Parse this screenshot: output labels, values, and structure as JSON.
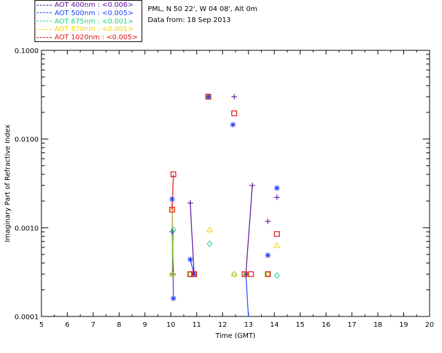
{
  "legend": [
    {
      "label": "AOT  400nm : <0.006>",
      "color": "#5a0a9a"
    },
    {
      "label": "AOT  500nm : <0.005>",
      "color": "#1e3cff"
    },
    {
      "label": "AOT  675nm : <0.001>",
      "color": "#22d07a"
    },
    {
      "label": "AOT  870nm : <0.001>",
      "color": "#f2d200"
    },
    {
      "label": "AOT 1020nm : <0.005>",
      "color": "#e01010"
    }
  ],
  "info": {
    "location": "PML, N 50 22', W 04 08', Alt 0m",
    "date": "Data from: 18 Sep 2013"
  },
  "chart_data": {
    "type": "scatter",
    "title": "",
    "xlabel": "Time (GMT)",
    "ylabel": "Imaginary Part of Refractive Index",
    "xlim": [
      5,
      20
    ],
    "ylim": [
      0.0001,
      0.1
    ],
    "yscale": "log",
    "xticks": [
      "5",
      "6",
      "7",
      "8",
      "9",
      "10",
      "11",
      "12",
      "13",
      "14",
      "15",
      "16",
      "17",
      "18",
      "19",
      "20"
    ],
    "yticks": [
      "0.0001",
      "0.0010",
      "0.0100",
      "0.1000"
    ],
    "series": [
      {
        "name": "AOT 400nm",
        "color": "#5a0a9a",
        "marker": "plus",
        "points": [
          [
            10.05,
            0.0009
          ],
          [
            10.1,
            0.0003
          ],
          [
            10.75,
            0.0019
          ],
          [
            10.9,
            0.0003
          ],
          [
            11.45,
            0.03
          ],
          [
            12.45,
            0.03
          ],
          [
            12.9,
            0.0003
          ],
          [
            13.15,
            0.003
          ],
          [
            13.75,
            0.00118
          ],
          [
            14.1,
            0.0022
          ]
        ],
        "segments": [
          [
            [
              10.05,
              0.0009
            ],
            [
              10.1,
              0.0003
            ]
          ],
          [
            [
              10.75,
              0.0019
            ],
            [
              10.9,
              0.0003
            ]
          ],
          [
            [
              12.9,
              0.0003
            ],
            [
              13.15,
              0.003
            ]
          ]
        ]
      },
      {
        "name": "AOT 500nm",
        "color": "#1e3cff",
        "marker": "asterisk",
        "points": [
          [
            10.05,
            0.0021
          ],
          [
            10.1,
            0.00016
          ],
          [
            10.75,
            0.00044
          ],
          [
            10.9,
            0.0003
          ],
          [
            11.45,
            0.03
          ],
          [
            12.4,
            0.0145
          ],
          [
            12.9,
            0.0003
          ],
          [
            13.75,
            0.00049
          ],
          [
            14.1,
            0.0028
          ]
        ],
        "segments": [
          [
            [
              10.05,
              0.0021
            ],
            [
              10.1,
              0.00016
            ]
          ],
          [
            [
              10.75,
              0.00044
            ],
            [
              10.9,
              0.0003
            ]
          ],
          [
            [
              12.9,
              0.0003
            ],
            [
              13.0,
              0.0001
            ]
          ]
        ]
      },
      {
        "name": "AOT 675nm",
        "color": "#22d07a",
        "marker": "diamond",
        "points": [
          [
            10.1,
            0.00095
          ],
          [
            10.05,
            0.0003
          ],
          [
            10.75,
            0.0003
          ],
          [
            11.45,
            0.03
          ],
          [
            11.5,
            0.00066
          ],
          [
            12.45,
            0.0003
          ],
          [
            12.9,
            0.0003
          ],
          [
            13.75,
            0.0003
          ],
          [
            14.1,
            0.00029
          ]
        ],
        "segments": [
          [
            [
              10.1,
              0.00095
            ],
            [
              10.05,
              0.0003
            ]
          ]
        ]
      },
      {
        "name": "AOT 870nm",
        "color": "#f2d200",
        "marker": "triangle",
        "points": [
          [
            10.05,
            0.0016
          ],
          [
            10.05,
            0.0003
          ],
          [
            10.75,
            0.0003
          ],
          [
            11.5,
            0.00095
          ],
          [
            12.45,
            0.0003
          ],
          [
            12.9,
            0.0003
          ],
          [
            13.75,
            0.0003
          ],
          [
            14.1,
            0.00063
          ]
        ],
        "segments": [
          [
            [
              10.05,
              0.0016
            ],
            [
              10.05,
              0.0003
            ]
          ]
        ]
      },
      {
        "name": "AOT 1020nm",
        "color": "#e01010",
        "marker": "square",
        "points": [
          [
            10.1,
            0.004
          ],
          [
            10.05,
            0.0016
          ],
          [
            10.75,
            0.0003
          ],
          [
            10.9,
            0.0003
          ],
          [
            11.45,
            0.03
          ],
          [
            12.45,
            0.0195
          ],
          [
            12.85,
            0.0003
          ],
          [
            13.1,
            0.0003
          ],
          [
            13.75,
            0.0003
          ],
          [
            14.1,
            0.00085
          ]
        ],
        "segments": [
          [
            [
              10.1,
              0.004
            ],
            [
              10.05,
              0.0016
            ]
          ]
        ]
      }
    ]
  }
}
